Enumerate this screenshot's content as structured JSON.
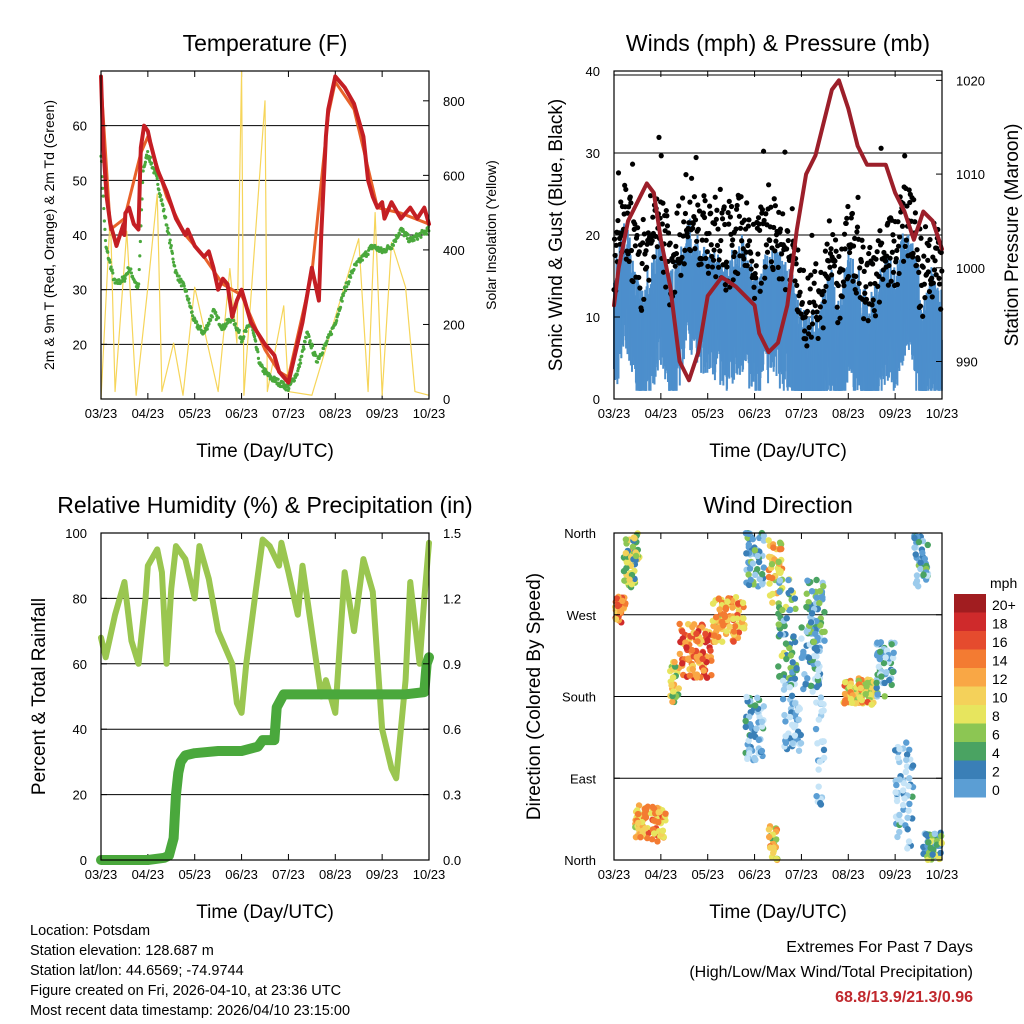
{
  "time_ticks": [
    "03/23",
    "04/23",
    "05/23",
    "06/23",
    "07/23",
    "08/23",
    "09/23",
    "10/23"
  ],
  "xlabel": "Time (Day/UTC)",
  "chart_data": [
    {
      "type": "line",
      "id": "temp",
      "title": "Temperature (F)",
      "ylabel": "2m & 9m T (Red, Orange) & 2m Td (Green)",
      "ylabel_right": "Solar Insolation (Yellow)",
      "ylim": [
        10,
        70
      ],
      "ylim_right": [
        0,
        880
      ],
      "yticks": [
        20,
        30,
        40,
        50,
        60
      ],
      "yticks_right": [
        0,
        200,
        400,
        600,
        800
      ],
      "gridlines": [
        20,
        30,
        40,
        50,
        60,
        70
      ],
      "series": [
        {
          "name": "2m T",
          "color": "#c41e24",
          "x": [
            0,
            0.05,
            0.12,
            0.2,
            0.3,
            0.33,
            0.48,
            0.5,
            0.52,
            0.6,
            0.7,
            0.8,
            0.85,
            0.92,
            1.0,
            1.05,
            1.2,
            1.4,
            1.6,
            1.8,
            1.85,
            1.9,
            2.0,
            2.1,
            2.2,
            2.3,
            2.4,
            2.5,
            2.6,
            2.7,
            2.8,
            2.9,
            3.0,
            3.2,
            3.5,
            3.7,
            3.8,
            4.0,
            4.3,
            4.5,
            4.65,
            4.7,
            4.8,
            4.85,
            4.9,
            5.0,
            5.2,
            5.4,
            5.6,
            5.7,
            5.8,
            5.9,
            6.0,
            6.05,
            6.2,
            6.4,
            6.5,
            6.6,
            6.75,
            6.9,
            7.0
          ],
          "values": [
            69,
            56,
            47,
            42,
            39,
            38,
            42,
            40,
            44,
            45,
            42,
            41,
            56,
            60,
            59,
            57,
            52,
            48,
            43,
            40,
            41,
            40,
            38,
            37,
            36,
            37,
            34,
            30,
            32,
            31,
            25,
            28,
            30,
            24,
            20,
            18,
            15,
            13,
            24,
            34,
            28,
            40,
            58,
            63,
            65,
            69,
            67,
            64,
            58,
            50,
            47,
            45,
            46,
            43,
            46,
            43,
            44,
            45,
            43,
            45,
            42
          ]
        },
        {
          "name": "9m T",
          "color": "#e8622a",
          "x": [
            0,
            0.2,
            0.5,
            0.85,
            1.0,
            1.4,
            1.8,
            2.2,
            2.6,
            3.0,
            3.5,
            3.8,
            4.0,
            4.5,
            4.85,
            5.0,
            5.4,
            5.9,
            6.4,
            7.0
          ],
          "values": [
            68,
            41,
            43,
            55,
            58,
            47,
            40,
            36,
            31,
            29,
            19,
            15,
            14,
            33,
            62,
            68,
            63,
            45,
            44,
            42
          ]
        },
        {
          "name": "2m Td",
          "color": "#4aa83c",
          "x": [
            0,
            0.1,
            0.3,
            0.5,
            0.6,
            0.8,
            0.9,
            1.0,
            1.2,
            1.4,
            1.6,
            1.8,
            2.0,
            2.2,
            2.4,
            2.6,
            2.8,
            3.0,
            3.2,
            3.4,
            3.6,
            3.8,
            4.0,
            4.2,
            4.4,
            4.6,
            4.8,
            5.0,
            5.2,
            5.4,
            5.6,
            5.8,
            6.0,
            6.2,
            6.4,
            6.6,
            6.8,
            7.0
          ],
          "values": [
            55,
            38,
            31,
            32,
            34,
            30,
            52,
            55,
            50,
            42,
            33,
            30,
            24,
            22,
            26,
            23,
            25,
            21,
            24,
            16,
            14,
            13,
            12,
            15,
            22,
            17,
            20,
            24,
            30,
            34,
            36,
            38,
            37,
            38,
            41,
            39,
            40,
            41
          ]
        },
        {
          "name": "Solar Insolation",
          "color": "#f6d55a",
          "axis": "right",
          "x": [
            0,
            0.2,
            0.3,
            0.55,
            0.75,
            1.0,
            1.2,
            1.3,
            1.55,
            1.75,
            2.0,
            2.5,
            2.75,
            2.9,
            3.0,
            3.05,
            3.5,
            3.55,
            3.9,
            4.0,
            4.5,
            5.5,
            5.7,
            5.85,
            6.0,
            6.2,
            6.5,
            6.7,
            7.0
          ],
          "values": [
            0,
            500,
            20,
            450,
            10,
            300,
            550,
            20,
            150,
            10,
            300,
            20,
            350,
            150,
            880,
            10,
            800,
            20,
            250,
            20,
            10,
            430,
            20,
            500,
            10,
            420,
            300,
            20,
            10
          ]
        }
      ]
    },
    {
      "type": "scatter",
      "id": "winds",
      "title": "Winds (mph) & Pressure (mb)",
      "ylabel": "Sonic Wind & Gust (Blue, Black)",
      "ylabel_right": "Station Pressure (Maroon)",
      "ylim": [
        0,
        40
      ],
      "ylim_right": [
        986,
        1021
      ],
      "yticks": [
        0,
        10,
        20,
        30,
        40
      ],
      "yticks_right": [
        990,
        1000,
        1010,
        1020
      ],
      "gridlines": [
        10,
        20,
        30,
        40
      ],
      "series": [
        {
          "name": "Pressure",
          "type": "line",
          "axis": "right",
          "color": "#9c1f2a",
          "x": [
            0,
            0.1,
            0.3,
            0.5,
            0.7,
            0.85,
            1.0,
            1.2,
            1.4,
            1.6,
            1.8,
            2.0,
            2.3,
            2.6,
            2.8,
            3.0,
            3.1,
            3.3,
            3.5,
            3.7,
            3.9,
            4.1,
            4.3,
            4.5,
            4.65,
            4.8,
            5.0,
            5.2,
            5.4,
            5.6,
            5.8,
            6.0,
            6.2,
            6.4,
            6.6,
            6.8,
            7.0
          ],
          "values": [
            996,
            1000,
            1005,
            1007,
            1009,
            1008,
            1003,
            998,
            990,
            988,
            991,
            997,
            999,
            998,
            997,
            996,
            993,
            991,
            992,
            996,
            1004,
            1010,
            1012,
            1016,
            1019,
            1020,
            1017,
            1013,
            1011,
            1011,
            1011,
            1008,
            1006,
            1003,
            1006,
            1005,
            1002
          ]
        }
      ]
    },
    {
      "type": "line",
      "id": "rh",
      "title": "Relative Humidity (%) & Precipitation (in)",
      "ylabel": "Percent & Total Rainfall",
      "ylim": [
        0,
        100
      ],
      "ylim_right": [
        0,
        1.5
      ],
      "yticks": [
        0,
        20,
        40,
        60,
        80,
        100
      ],
      "yticks_right": [
        "0.0",
        "0.3",
        "0.6",
        "0.9",
        "1.2",
        "1.5"
      ],
      "gridlines": [
        20,
        40,
        60,
        80
      ],
      "series": [
        {
          "name": "Relative Humidity",
          "color": "#9ac650",
          "x": [
            0,
            0.1,
            0.3,
            0.5,
            0.65,
            0.8,
            0.95,
            1.0,
            1.2,
            1.3,
            1.4,
            1.5,
            1.6,
            1.8,
            2.0,
            2.1,
            2.3,
            2.5,
            2.8,
            2.9,
            3.0,
            3.1,
            3.3,
            3.45,
            3.6,
            3.8,
            3.85,
            4.0,
            4.2,
            4.3,
            4.5,
            4.7,
            4.8,
            5.0,
            5.2,
            5.4,
            5.6,
            5.8,
            6.0,
            6.2,
            6.3,
            6.5,
            6.6,
            6.8,
            6.9,
            7.0
          ],
          "values": [
            68,
            62,
            75,
            85,
            67,
            60,
            80,
            90,
            95,
            88,
            60,
            83,
            96,
            92,
            80,
            96,
            86,
            70,
            60,
            48,
            45,
            60,
            82,
            98,
            96,
            90,
            97,
            88,
            75,
            90,
            70,
            50,
            55,
            45,
            88,
            70,
            92,
            82,
            40,
            28,
            25,
            55,
            85,
            60,
            80,
            97
          ]
        },
        {
          "name": "Total Precipitation",
          "color": "#4aa83c",
          "axis": "right",
          "x": [
            0,
            0.5,
            1.0,
            1.35,
            1.45,
            1.55,
            1.6,
            1.65,
            1.7,
            1.8,
            2.0,
            2.5,
            3.0,
            3.35,
            3.45,
            3.7,
            3.75,
            3.9,
            4.0,
            4.5,
            5.0,
            5.5,
            6.0,
            6.5,
            6.9,
            6.95,
            7.0
          ],
          "values": [
            0,
            0,
            0,
            0.01,
            0.02,
            0.1,
            0.3,
            0.4,
            0.45,
            0.48,
            0.49,
            0.5,
            0.5,
            0.52,
            0.55,
            0.55,
            0.7,
            0.76,
            0.76,
            0.76,
            0.76,
            0.76,
            0.76,
            0.76,
            0.77,
            0.9,
            0.93
          ]
        }
      ]
    },
    {
      "type": "scatter",
      "id": "winddir",
      "title": "Wind Direction",
      "ylabel": "Direction (Colored By Speed)",
      "yticks": [
        "North",
        "East",
        "South",
        "West",
        "North"
      ],
      "gridlines": [
        90,
        180,
        270
      ],
      "legend_title": "mph",
      "legend_labels": [
        "20+",
        "18",
        "16",
        "14",
        "12",
        "10",
        "8",
        "6",
        "4",
        "2",
        "0"
      ],
      "legend_colors": [
        "#a11d20",
        "#cf2a2b",
        "#e54b2e",
        "#f37b32",
        "#f9a745",
        "#f4d15a",
        "#e7e55e",
        "#8cc653",
        "#4aa362",
        "#3a7fb7",
        "#5b9ed4",
        "#9ccbec",
        "#c6e4f7"
      ]
    }
  ],
  "footer": {
    "location": "Location: Potsdam",
    "elevation": "Station elevation: 128.687 m",
    "latlon": "Station lat/lon: 44.6569; -74.9744",
    "created": "Figure created on Fri, 2026-04-10, at 23:36 UTC",
    "recent": "Most recent data timestamp: 2026/04/10 23:15:00",
    "extremes_title": "Extremes For Past 7 Days",
    "extremes_sub": "(High/Low/Max Wind/Total Precipitation)",
    "extremes_values": "68.8/13.9/21.3/0.96"
  }
}
